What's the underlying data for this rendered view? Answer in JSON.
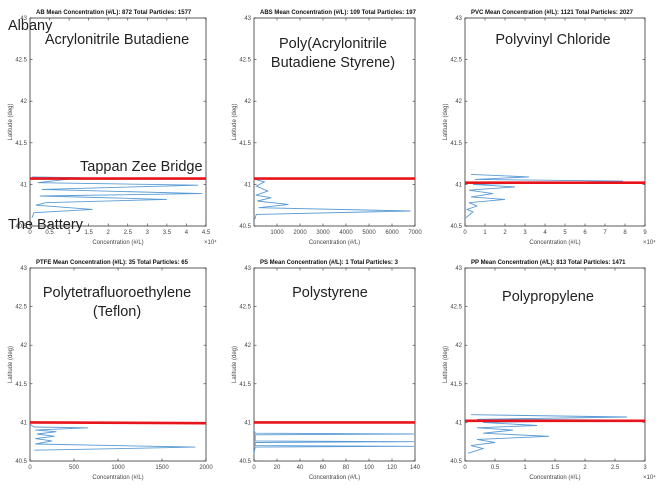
{
  "labels": {
    "albany": "Albany",
    "tappan": "Tappan Zee Bridge",
    "battery": "The Battery"
  },
  "colors": {
    "trace": "#5a9bd5",
    "bridge_line": "#e8141b"
  },
  "chart_data": [
    {
      "type": "line",
      "title": "AB   Mean Concentration (#/L): 872   Total Particles: 1577",
      "name": "Acrylonitrile Butadiene",
      "xlabel": "Concentration (#/L)",
      "ylabel": "Latitude (deg)",
      "xlim": [
        0,
        4.5
      ],
      "ylim": [
        40.5,
        43
      ],
      "x_exponent": "×10⁴",
      "xticks": [
        0,
        0.5,
        1,
        1.5,
        2,
        2.5,
        3,
        3.5,
        4,
        4.5
      ],
      "xtick_labels": [
        "0",
        "0.5",
        "1",
        "1.5",
        "2",
        "2.5",
        "3",
        "3.5",
        "4",
        "4.5"
      ],
      "yticks": [
        40.5,
        41,
        41.5,
        42,
        42.5,
        43
      ],
      "ytick_labels": [
        "40.5",
        "41",
        "41.5",
        "42",
        "42.5",
        "43"
      ],
      "bridge_latitude": [
        41.07,
        41.07
      ],
      "series": [
        {
          "x": [
            0.05,
            1.3,
            0.2,
            4.3,
            0.3,
            4.4,
            0.25,
            3.5,
            0.4,
            0.15,
            1.6,
            0.1,
            0.05
          ],
          "y": [
            41.09,
            41.08,
            41.02,
            40.99,
            40.94,
            40.89,
            40.86,
            40.82,
            40.78,
            40.75,
            40.7,
            40.66,
            40.6
          ]
        }
      ]
    },
    {
      "type": "line",
      "title": "ABS   Mean Concentration (#/L): 109   Total Particles: 197",
      "name": "Poly(Acrylonitrile Butadiene Styrene)",
      "xlabel": "Concentration (#/L)",
      "ylabel": "Latitude (deg)",
      "xlim": [
        0,
        7000
      ],
      "ylim": [
        40.5,
        43
      ],
      "x_exponent": "",
      "xticks": [
        1000,
        2000,
        3000,
        4000,
        5000,
        6000,
        7000
      ],
      "xtick_labels": [
        "1000",
        "2000",
        "3000",
        "4000",
        "5000",
        "6000",
        "7000"
      ],
      "yticks": [
        40.5,
        41,
        41.5,
        42,
        42.5,
        43
      ],
      "ytick_labels": [
        "40.5",
        "41",
        "41.5",
        "42",
        "42.5",
        "43"
      ],
      "bridge_latitude": [
        41.07,
        41.07
      ],
      "series": [
        {
          "x": [
            50,
            450,
            100,
            600,
            80,
            750,
            150,
            1500,
            200,
            6800,
            100,
            30
          ],
          "y": [
            41.06,
            41.03,
            40.98,
            40.92,
            40.87,
            40.84,
            40.8,
            40.76,
            40.72,
            40.68,
            40.64,
            40.58
          ]
        }
      ]
    },
    {
      "type": "line",
      "title": "PVC   Mean Concentration (#/L): 1121   Total Particles: 2027",
      "name": "Polyvinyl Chloride",
      "xlabel": "Concentration (#/L)",
      "ylabel": "Latitude (deg)",
      "xlim": [
        0,
        9
      ],
      "ylim": [
        40.5,
        43
      ],
      "x_exponent": "×10⁴",
      "xticks": [
        0,
        1,
        2,
        3,
        4,
        5,
        6,
        7,
        8,
        9
      ],
      "xtick_labels": [
        "0",
        "1",
        "2",
        "3",
        "4",
        "5",
        "6",
        "7",
        "8",
        "9"
      ],
      "yticks": [
        40.5,
        41,
        41.5,
        42,
        42.5,
        43
      ],
      "ytick_labels": [
        "40.5",
        "41",
        "41.5",
        "42",
        "42.5",
        "43"
      ],
      "bridge_latitude": [
        41.02,
        41.02
      ],
      "series": [
        {
          "x": [
            0.3,
            3.2,
            0.5,
            7.9,
            0.4,
            2.5,
            0.2,
            1.4,
            0.3,
            2.0,
            0.2,
            0.6,
            0.1,
            0.4,
            0.05
          ],
          "y": [
            41.12,
            41.09,
            41.06,
            41.04,
            41.0,
            40.97,
            40.93,
            40.89,
            40.85,
            40.82,
            40.78,
            40.74,
            40.7,
            40.67,
            40.6
          ]
        }
      ]
    },
    {
      "type": "line",
      "title": "PTFE   Mean Concentration (#/L): 35   Total Particles: 65",
      "name": "Polytetrafluoroethylene (Teflon)",
      "xlabel": "Concentration (#/L)",
      "ylabel": "Latitude (deg)",
      "xlim": [
        0,
        2000
      ],
      "ylim": [
        40.5,
        43
      ],
      "x_exponent": "",
      "xticks": [
        0,
        500,
        1000,
        1500,
        2000
      ],
      "xtick_labels": [
        "0",
        "500",
        "1000",
        "1500",
        "2000"
      ],
      "yticks": [
        40.5,
        41,
        41.5,
        42,
        42.5,
        43
      ],
      "ytick_labels": [
        "40.5",
        "41",
        "41.5",
        "42",
        "42.5",
        "43"
      ],
      "bridge_latitude": [
        41.0,
        40.99
      ],
      "series": [
        {
          "x": [
            0,
            20,
            50,
            660,
            60,
            300,
            80,
            280,
            60,
            250,
            60,
            1880,
            50
          ],
          "y": [
            40.98,
            40.96,
            40.94,
            40.93,
            40.9,
            40.88,
            40.85,
            40.82,
            40.79,
            40.76,
            40.72,
            40.68,
            40.64
          ]
        }
      ]
    },
    {
      "type": "line",
      "title": "PS   Mean Concentration (#/L): 1   Total Particles: 3",
      "name": "Polystyrene",
      "xlabel": "Concentration (#/L)",
      "ylabel": "Latitude (deg)",
      "xlim": [
        0,
        140
      ],
      "ylim": [
        40.5,
        43
      ],
      "x_exponent": "",
      "xticks": [
        0,
        20,
        40,
        60,
        80,
        100,
        120,
        140
      ],
      "xtick_labels": [
        "0",
        "20",
        "40",
        "60",
        "80",
        "100",
        "120",
        "140"
      ],
      "yticks": [
        40.5,
        41,
        41.5,
        42,
        42.5,
        43
      ],
      "ytick_labels": [
        "40.5",
        "41",
        "41.5",
        "42",
        "42.5",
        "43"
      ],
      "bridge_latitude": [
        41.0,
        41.0
      ],
      "series": [
        {
          "x": [
            0,
            1,
            139,
            1,
            1,
            139,
            1,
            1,
            139,
            1,
            0
          ],
          "y": [
            40.9,
            40.86,
            40.85,
            40.84,
            40.76,
            40.75,
            40.74,
            40.7,
            40.69,
            40.68,
            40.6
          ]
        }
      ]
    },
    {
      "type": "line",
      "title": "PP   Mean Concentration (#/L): 813   Total Particles: 1471",
      "name": "Polypropylene",
      "xlabel": "Concentration (#/L)",
      "ylabel": "Latitude (deg)",
      "xlim": [
        0,
        3
      ],
      "ylim": [
        40.5,
        43
      ],
      "x_exponent": "×10⁴",
      "xticks": [
        0,
        0.5,
        1,
        1.5,
        2,
        2.5,
        3
      ],
      "xtick_labels": [
        "0",
        "0.5",
        "1",
        "1.5",
        "2",
        "2.5",
        "3"
      ],
      "yticks": [
        40.5,
        41,
        41.5,
        42,
        42.5,
        43
      ],
      "ytick_labels": [
        "40.5",
        "41",
        "41.5",
        "42",
        "42.5",
        "43"
      ],
      "bridge_latitude": [
        41.02,
        41.02
      ],
      "series": [
        {
          "x": [
            0.1,
            2.7,
            0.2,
            2.9,
            0.3,
            1.2,
            0.2,
            0.8,
            0.3,
            1.4,
            0.2,
            0.5,
            0.1,
            0.3,
            0.05
          ],
          "y": [
            41.1,
            41.07,
            41.04,
            41.03,
            41.0,
            40.96,
            40.93,
            40.9,
            40.86,
            40.82,
            40.78,
            40.74,
            40.7,
            40.66,
            40.6
          ]
        }
      ]
    }
  ]
}
